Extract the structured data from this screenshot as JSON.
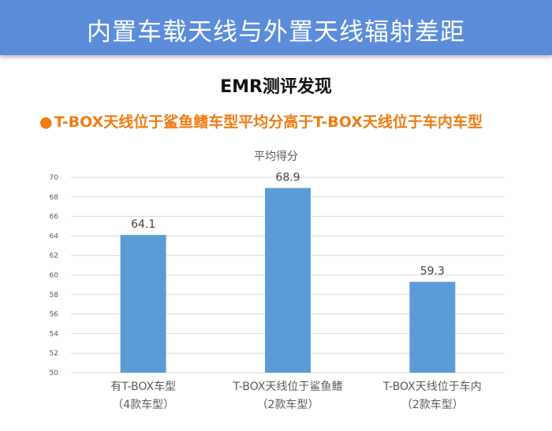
{
  "header": {
    "title": "内置车载天线与外置天线辐射差距"
  },
  "section": {
    "heading": "EMR测评发现",
    "finding_bullet": "●",
    "finding": "T-BOX天线位于鲨鱼鳍车型平均分高于T-BOX天线位于车内车型"
  },
  "colors": {
    "banner": "#5b8ddb",
    "finding": "#f07c12",
    "bar": "#5b9bd5"
  },
  "chart_data": {
    "type": "bar",
    "title": "平均得分",
    "categories": [
      [
        "有T-BOX车型",
        "（4款车型）"
      ],
      [
        "T-BOX天线位于鲨鱼鳍",
        "（2款车型）"
      ],
      [
        "T-BOX天线位于车内",
        "（2款车型）"
      ]
    ],
    "values": [
      64.1,
      68.9,
      59.3
    ],
    "value_labels": [
      "64.1",
      "68.9",
      "59.3"
    ],
    "ylim": [
      50,
      70
    ],
    "yticks": [
      50,
      52,
      54,
      56,
      58,
      60,
      62,
      64,
      66,
      68,
      70
    ],
    "grid": true,
    "xlabel": "",
    "ylabel": ""
  }
}
